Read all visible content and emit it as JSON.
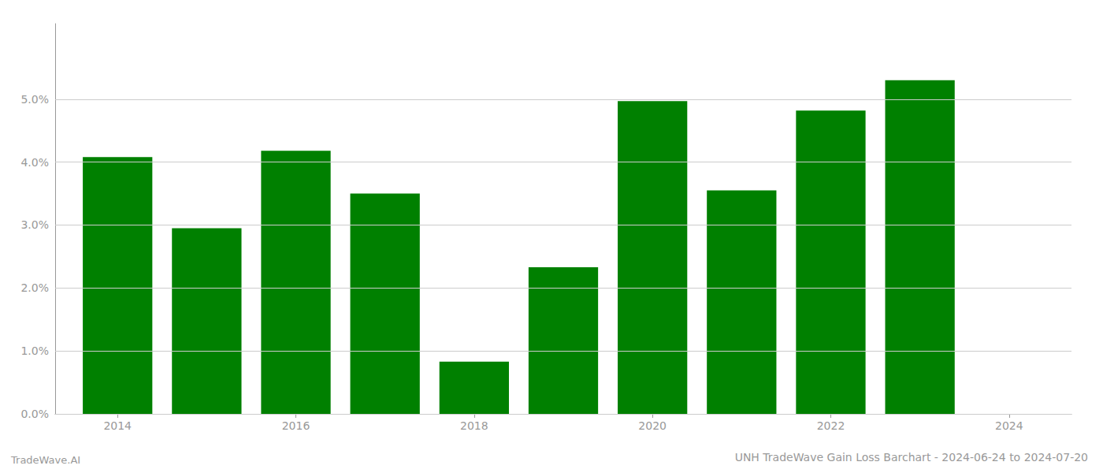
{
  "chart_data": {
    "type": "bar",
    "title": "UNH TradeWave Gain Loss Barchart - 2024-06-24 to 2024-07-20",
    "annotations": [
      "TradeWave.AI"
    ],
    "x": [
      2014,
      2015,
      2016,
      2017,
      2018,
      2019,
      2020,
      2021,
      2022,
      2023
    ],
    "values": [
      0.0408,
      0.0295,
      0.0418,
      0.035,
      0.0083,
      0.0233,
      0.0497,
      0.0355,
      0.0482,
      0.053
    ],
    "color": "#008000",
    "xlim": [
      2013.3,
      2024.7
    ],
    "xticks": [
      2014,
      2016,
      2018,
      2020,
      2022,
      2024
    ],
    "ylim": [
      0,
      0.062
    ],
    "yticks": [
      {
        "value": 0.0,
        "label": "0.0%"
      },
      {
        "value": 0.01,
        "label": "1.0%"
      },
      {
        "value": 0.02,
        "label": "2.0%"
      },
      {
        "value": 0.03,
        "label": "3.0%"
      },
      {
        "value": 0.04,
        "label": "4.0%"
      },
      {
        "value": 0.05,
        "label": "5.0%"
      }
    ],
    "grid": true
  }
}
